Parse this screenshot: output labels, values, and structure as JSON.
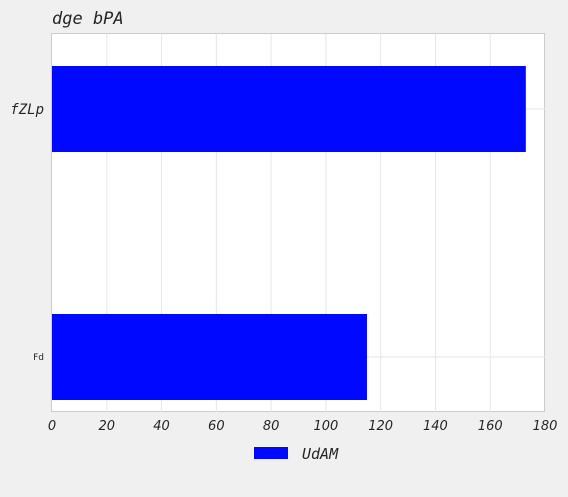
{
  "chart_data": {
    "type": "bar",
    "orientation": "horizontal",
    "title": "dge  bPA",
    "categories": [
      "fZLp",
      "Fd"
    ],
    "series": [
      {
        "name": "UdAM",
        "values": [
          173,
          115
        ],
        "color": "#0008ff"
      }
    ],
    "xlim": [
      0,
      180
    ],
    "xticks": [
      "0",
      "20",
      "40",
      "60",
      "80",
      "100",
      "120",
      "140",
      "160",
      "180"
    ],
    "grid": true,
    "legend_position": "bottom-center"
  }
}
